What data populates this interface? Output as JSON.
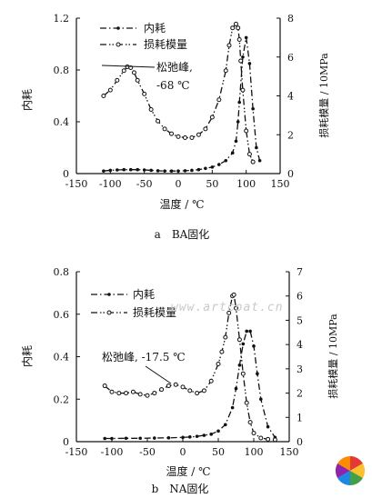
{
  "watermark": "www.artcoat.cn",
  "chart_data": [
    {
      "type": "line",
      "caption": "a　BA固化",
      "xlabel": "温度 / ℃",
      "ylabel_left": "内耗",
      "ylabel_right": "损耗模量 / 10MPa",
      "xlim": [
        -150,
        150
      ],
      "ylim_left": [
        0,
        1.2
      ],
      "ylim_right": [
        0,
        8
      ],
      "xticks": [
        "-150",
        "-100",
        "-50",
        "0",
        "50",
        "100",
        "150"
      ],
      "yticks_left": [
        "0",
        "0.4",
        "0.8",
        "1.2"
      ],
      "yticks_right": [
        "0",
        "2",
        "4",
        "6",
        "8"
      ],
      "legend": [
        {
          "label": "内耗",
          "marker": "dot",
          "style": "dash-dot"
        },
        {
          "label": "损耗模量",
          "marker": "circle",
          "style": "dash-dot-dot"
        }
      ],
      "annotation": {
        "text": [
          "松弛峰,",
          "-68 ℃"
        ],
        "x": -68,
        "y": 0.81
      },
      "series": [
        {
          "name": "内耗",
          "axis": "left",
          "x": [
            -110,
            -100,
            -90,
            -80,
            -70,
            -60,
            -50,
            -40,
            -30,
            -20,
            -10,
            0,
            10,
            20,
            30,
            40,
            50,
            60,
            70,
            80,
            85,
            88,
            90,
            95,
            100,
            105,
            110,
            115,
            120
          ],
          "y": [
            0.02,
            0.025,
            0.028,
            0.03,
            0.03,
            0.03,
            0.028,
            0.025,
            0.022,
            0.02,
            0.02,
            0.02,
            0.022,
            0.025,
            0.03,
            0.04,
            0.05,
            0.07,
            0.1,
            0.16,
            0.25,
            0.4,
            0.55,
            0.9,
            1.05,
            0.85,
            0.5,
            0.2,
            0.1
          ]
        },
        {
          "name": "损耗模量",
          "axis": "right",
          "x": [
            -110,
            -100,
            -90,
            -80,
            -75,
            -70,
            -65,
            -60,
            -50,
            -40,
            -30,
            -20,
            -10,
            0,
            10,
            20,
            30,
            40,
            50,
            60,
            70,
            75,
            80,
            85,
            88,
            90,
            92,
            95,
            100,
            105,
            110
          ],
          "y": [
            4.0,
            4.3,
            4.8,
            5.3,
            5.5,
            5.45,
            5.2,
            4.8,
            4.1,
            3.3,
            2.7,
            2.3,
            2.05,
            1.9,
            1.85,
            1.85,
            2.0,
            2.3,
            2.9,
            3.8,
            5.3,
            6.6,
            7.5,
            7.7,
            7.5,
            6.9,
            5.8,
            4.3,
            2.2,
            1.0,
            0.6
          ]
        }
      ]
    },
    {
      "type": "line",
      "caption": "b　NA固化",
      "xlabel": "温度 / ℃",
      "ylabel_left": "内耗",
      "ylabel_right": "损耗模量 / 10MPa",
      "xlim": [
        -150,
        150
      ],
      "ylim_left": [
        0,
        0.8
      ],
      "ylim_right": [
        0,
        7
      ],
      "xticks": [
        "-150",
        "-100",
        "-50",
        "0",
        "50",
        "100",
        "150"
      ],
      "yticks_left": [
        "0",
        "0.2",
        "0.4",
        "0.6",
        "0.8"
      ],
      "yticks_right": [
        "0",
        "1",
        "2",
        "3",
        "4",
        "5",
        "6",
        "7"
      ],
      "legend": [
        {
          "label": "内耗",
          "marker": "dot",
          "style": "dash-dot"
        },
        {
          "label": "损耗模量",
          "marker": "circle",
          "style": "dash-dot-dot"
        }
      ],
      "annotation": {
        "text": [
          "松弛峰, -17.5 ℃"
        ],
        "x": -17.5,
        "y": 0.265
      },
      "series": [
        {
          "name": "内耗",
          "axis": "left",
          "x": [
            -110,
            -100,
            -80,
            -60,
            -40,
            -20,
            0,
            10,
            20,
            30,
            40,
            50,
            60,
            70,
            75,
            80,
            85,
            90,
            95,
            100,
            105,
            110,
            120,
            130
          ],
          "y": [
            0.015,
            0.015,
            0.016,
            0.016,
            0.017,
            0.018,
            0.02,
            0.022,
            0.025,
            0.03,
            0.035,
            0.05,
            0.08,
            0.16,
            0.25,
            0.36,
            0.46,
            0.52,
            0.52,
            0.45,
            0.32,
            0.2,
            0.07,
            0.02
          ]
        },
        {
          "name": "损耗模量",
          "axis": "right",
          "x": [
            -110,
            -100,
            -90,
            -80,
            -70,
            -60,
            -50,
            -40,
            -30,
            -20,
            -10,
            0,
            10,
            20,
            30,
            40,
            50,
            55,
            60,
            65,
            70,
            72,
            75,
            80,
            85,
            90,
            95,
            100,
            110,
            120,
            130
          ],
          "y": [
            2.3,
            2.05,
            2.0,
            2.0,
            2.05,
            1.95,
            1.9,
            2.0,
            2.15,
            2.3,
            2.35,
            2.25,
            2.1,
            2.0,
            2.1,
            2.5,
            3.2,
            3.7,
            4.3,
            5.3,
            6.0,
            6.05,
            5.5,
            4.2,
            2.8,
            1.6,
            0.8,
            0.35,
            0.15,
            0.1,
            0.08
          ]
        }
      ]
    }
  ]
}
